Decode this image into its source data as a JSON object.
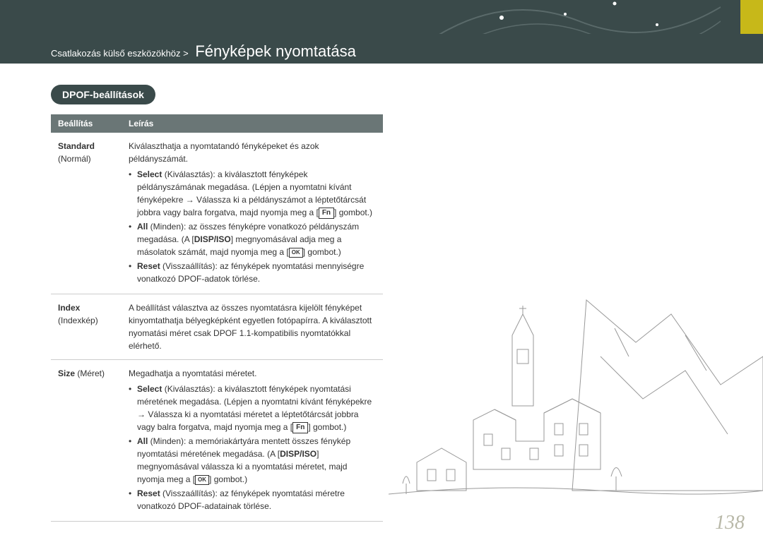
{
  "header": {
    "breadcrumb_prefix": "Csatlakozás külső eszközökhöz >",
    "page_title": "Fényképek nyomtatása",
    "accent_color": "#c7b819",
    "bg_color": "#3a4a4a"
  },
  "section": {
    "badge": "DPOF-beállítások"
  },
  "table": {
    "header_bg": "#6a7676",
    "columns": [
      "Beállítás",
      "Leírás"
    ],
    "rows": [
      {
        "name": "Standard",
        "sub": "(Normál)",
        "intro": "Kiválaszthatja a nyomtatandó fényképeket és azok példányszámát.",
        "bullets": [
          {
            "lead": "Select",
            "lead_tr": " (Kiválasztás): a kiválasztott fényképek példányszámának megadása. (Lépjen a nyomtatni kívánt fényképekre → Válassza ki a példányszámot a léptetőtárcsát jobbra vagy balra forgatva, majd nyomja meg a [",
            "btn": "Fn",
            "tail": "] gombot.)"
          },
          {
            "lead": "All",
            "lead_tr": " (Minden): az összes fényképre vonatkozó példányszám megadása. (A [",
            "btn": "DISP/ISO",
            "tail": "] megnyomásával adja meg a másolatok számát, majd nyomja meg a [",
            "btn2": "OK",
            "tail2": "] gombot.)"
          },
          {
            "lead": "Reset",
            "lead_tr": " (Visszaállítás): az fényképek nyomtatási mennyiségre vonatkozó DPOF-adatok törlése.",
            "btn": "",
            "tail": ""
          }
        ]
      },
      {
        "name": "Index",
        "sub": "(Indexkép)",
        "intro": "A beállítást választva az összes nyomtatásra kijelölt fényképet kinyomtathatja bélyegképként egyetlen fotópapírra. A kiválasztott nyomatási méret csak DPOF 1.1-kompatibilis nyomtatókkal elérhető.",
        "bullets": []
      },
      {
        "name": "Size",
        "sub": " (Méret)",
        "name_inline": true,
        "intro": "Megadhatja a nyomtatási méretet.",
        "bullets": [
          {
            "lead": "Select",
            "lead_tr": " (Kiválasztás): a kiválasztott fényképek nyomtatási méretének megadása. (Lépjen a nyomtatni kívánt fényképekre → Válassza ki a nyomtatási méretet a léptetőtárcsát jobbra vagy balra forgatva, majd nyomja meg a [",
            "btn": "Fn",
            "tail": "] gombot.)"
          },
          {
            "lead": "All",
            "lead_tr": " (Minden): a memóriakártyára mentett összes fénykép nyomtatási méretének megadása. (A [",
            "btn": "DISP/ISO",
            "tail": "] megnyomásával válassza ki a nyomtatási méretet, majd nyomja meg a [",
            "btn2": "OK",
            "tail2": "] gombot.)"
          },
          {
            "lead": "Reset",
            "lead_tr": " (Visszaállítás): az fényképek nyomtatási méretre vonatkozó DPOF-adatainak törlése.",
            "btn": "",
            "tail": ""
          }
        ]
      }
    ]
  },
  "page_number": "138",
  "illustration": {
    "stroke": "#888888",
    "type": "line-art-village-mountains"
  }
}
